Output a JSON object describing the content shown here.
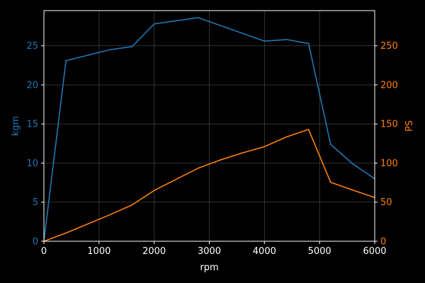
{
  "chart_data": {
    "type": "line",
    "title": "",
    "xlabel": "rpm",
    "ylabel_left": "kgm",
    "ylabel_right": "PS",
    "xlim": [
      0,
      6000
    ],
    "ylim_left": [
      0,
      29.5
    ],
    "ylim_right": [
      0,
      295
    ],
    "x_ticks": [
      0,
      1000,
      2000,
      3000,
      4000,
      5000,
      6000
    ],
    "y_ticks_left": [
      0,
      5,
      10,
      15,
      20,
      25
    ],
    "y_ticks_right": [
      0,
      50,
      100,
      150,
      200,
      250
    ],
    "grid": true,
    "legend": "none",
    "colors": {
      "background": "#000000",
      "foreground": "#ffffff",
      "grid": "#808080",
      "left_series": "#1f77b4",
      "right_series": "#ff7f0e"
    },
    "series": [
      {
        "axis": "left",
        "color": "#1f77b4",
        "x": [
          0,
          400,
          1200,
          1600,
          2000,
          2800,
          4000,
          4400,
          4800,
          5200,
          5600,
          6000
        ],
        "y": [
          0,
          23.1,
          24.5,
          24.9,
          27.8,
          28.6,
          25.6,
          25.8,
          25.3,
          12.4,
          9.9,
          8.0
        ]
      },
      {
        "axis": "right",
        "color": "#ff7f0e",
        "x": [
          0,
          400,
          1200,
          1600,
          2000,
          2800,
          3200,
          3600,
          4000,
          4400,
          4800,
          5200,
          5600,
          6000
        ],
        "y": [
          0,
          10.5,
          34.0,
          46.5,
          65.0,
          93.5,
          104.0,
          113.0,
          121.0,
          133.5,
          143.0,
          75.5,
          65.5,
          56.0
        ]
      }
    ]
  }
}
